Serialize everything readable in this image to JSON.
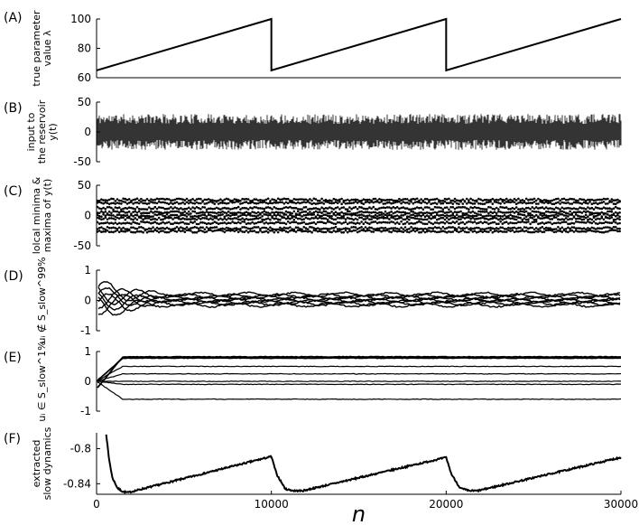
{
  "chart_data": [
    {
      "id": "A",
      "type": "line",
      "panel_label": "(A)",
      "ylabel_lines": [
        "true parameter",
        "value λ"
      ],
      "xlim": [
        0,
        30000
      ],
      "ylim": [
        60,
        100
      ],
      "yticks": [
        60,
        80,
        100
      ],
      "ytick_labels": [
        "60",
        "80",
        "100"
      ],
      "series": [
        {
          "x": [
            0,
            10000,
            10000,
            20000,
            20000,
            30000
          ],
          "y": [
            65,
            100,
            65,
            100,
            65,
            100
          ]
        }
      ]
    },
    {
      "id": "B",
      "type": "line",
      "panel_label": "(B)",
      "ylabel_lines": [
        "input to",
        "the reservoir",
        "y(t)"
      ],
      "xlim": [
        0,
        30000
      ],
      "ylim": [
        -50,
        50
      ],
      "yticks": [
        -50,
        0,
        50
      ],
      "ytick_labels": [
        "-50",
        "0",
        "50"
      ],
      "signal_envelope": [
        -30,
        30
      ]
    },
    {
      "id": "C",
      "type": "scatter",
      "panel_label": "(C)",
      "ylabel_lines": [
        "lolcal minima &",
        "maxima of y(t)"
      ],
      "xlim": [
        0,
        30000
      ],
      "ylim": [
        -50,
        50
      ],
      "yticks": [
        -50,
        0,
        50
      ],
      "ytick_labels": [
        "-50",
        "0",
        "50"
      ],
      "bands": [
        26,
        21,
        12,
        5,
        0,
        -5,
        -12,
        -21,
        -26
      ]
    },
    {
      "id": "D",
      "type": "line",
      "panel_label": "(D)",
      "ylabel_lines": [
        "uᵢ ∉ S_slow^99%"
      ],
      "xlim": [
        0,
        30000
      ],
      "ylim": [
        -1,
        1
      ],
      "yticks": [
        -1,
        0,
        1
      ],
      "ytick_labels": [
        "-1",
        "0",
        "1"
      ],
      "series_levels": [
        0.2,
        0.15,
        0.1,
        0.05,
        0,
        -0.05,
        -0.1,
        -0.15
      ]
    },
    {
      "id": "E",
      "type": "line",
      "panel_label": "(E)",
      "ylabel_lines": [
        "uᵢ ∈ S_slow^1%"
      ],
      "xlim": [
        0,
        30000
      ],
      "ylim": [
        -1,
        1
      ],
      "yticks": [
        -1,
        0,
        1
      ],
      "ytick_labels": [
        "-1",
        "0",
        "1"
      ],
      "series_levels": [
        0.82,
        0.78,
        0.5,
        0.25,
        0.0,
        -0.1,
        -0.6
      ]
    },
    {
      "id": "F",
      "type": "line",
      "panel_label": "(F)",
      "ylabel_lines": [
        "extracted",
        "slow dynamics"
      ],
      "xlim": [
        0,
        30000
      ],
      "ylim": [
        -0.852,
        -0.782
      ],
      "yticks": [
        -0.8,
        -0.84
      ],
      "ytick_labels": [
        "-0.8",
        "-0.84"
      ],
      "xticks": [
        0,
        10000,
        20000,
        30000
      ],
      "xtick_labels": [
        "0",
        "10000",
        "20000",
        "30000"
      ],
      "xlabel": "n",
      "series": [
        {
          "x": [
            550,
            700,
            900,
            1200,
            1500,
            1800,
            10000,
            10300,
            10800,
            11300,
            11800,
            20000,
            20300,
            20800,
            21300,
            21800,
            30000
          ],
          "y": [
            -0.783,
            -0.81,
            -0.833,
            -0.845,
            -0.849,
            -0.85,
            -0.809,
            -0.829,
            -0.846,
            -0.848,
            -0.848,
            -0.81,
            -0.829,
            -0.845,
            -0.848,
            -0.848,
            -0.81
          ]
        }
      ]
    }
  ]
}
